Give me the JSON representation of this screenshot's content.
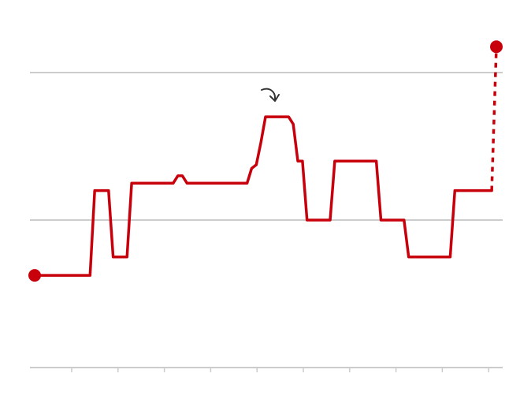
{
  "chart_data": {
    "type": "line",
    "title": "",
    "xlabel": "",
    "ylabel": "",
    "grid": true,
    "x_ticks": 10,
    "ylim": [
      0,
      4
    ],
    "gridlines_y": [
      2,
      4
    ],
    "colors": {
      "series": "#c8000b",
      "grid": "#cccccc",
      "annotation": "#333333"
    },
    "series": [
      {
        "points": [
          [
            0.0,
            1.25
          ],
          [
            1.2,
            1.25
          ],
          [
            1.3,
            2.4
          ],
          [
            1.6,
            2.4
          ],
          [
            1.7,
            1.5
          ],
          [
            2.0,
            1.5
          ],
          [
            2.1,
            2.5
          ],
          [
            3.0,
            2.5
          ],
          [
            3.1,
            2.6
          ],
          [
            3.2,
            2.6
          ],
          [
            3.3,
            2.5
          ],
          [
            4.6,
            2.5
          ],
          [
            4.7,
            2.7
          ],
          [
            4.8,
            2.75
          ],
          [
            4.9,
            3.05
          ],
          [
            5.0,
            3.4
          ],
          [
            5.5,
            3.4
          ],
          [
            5.6,
            3.3
          ],
          [
            5.7,
            2.8
          ],
          [
            5.8,
            2.8
          ],
          [
            5.9,
            2.0
          ],
          [
            6.4,
            2.0
          ],
          [
            6.5,
            2.8
          ],
          [
            7.4,
            2.8
          ],
          [
            7.5,
            2.0
          ],
          [
            8.0,
            2.0
          ],
          [
            8.1,
            1.5
          ],
          [
            9.0,
            1.5
          ],
          [
            9.1,
            2.4
          ],
          [
            9.9,
            2.4
          ]
        ],
        "projection": [
          [
            9.9,
            2.4
          ],
          [
            10.0,
            4.35
          ]
        ]
      }
    ]
  }
}
